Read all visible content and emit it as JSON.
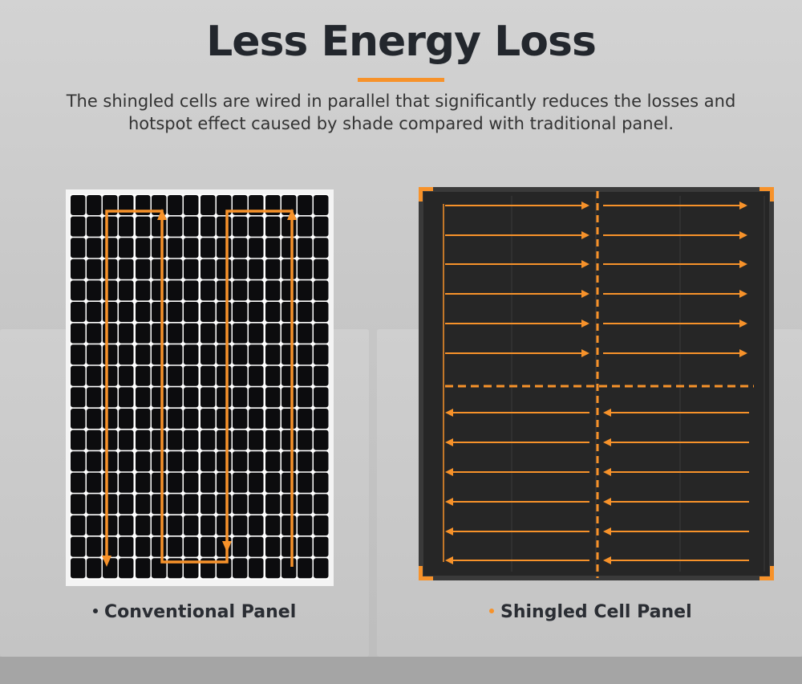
{
  "header": {
    "title": "Less Energy Loss",
    "subtitle": "The shingled cells are wired in parallel that significantly reduces the losses and hotspot effect caused by shade compared with traditional panel."
  },
  "panels": [
    {
      "label": "Conventional Panel",
      "bullet_color": "#2a2d33",
      "icon": "conventional-solar-panel"
    },
    {
      "label": "Shingled Cell Panel",
      "bullet_color": "#f7922a",
      "icon": "shingled-solar-panel"
    }
  ],
  "colors": {
    "accent": "#f7922a",
    "text": "#23272d"
  }
}
